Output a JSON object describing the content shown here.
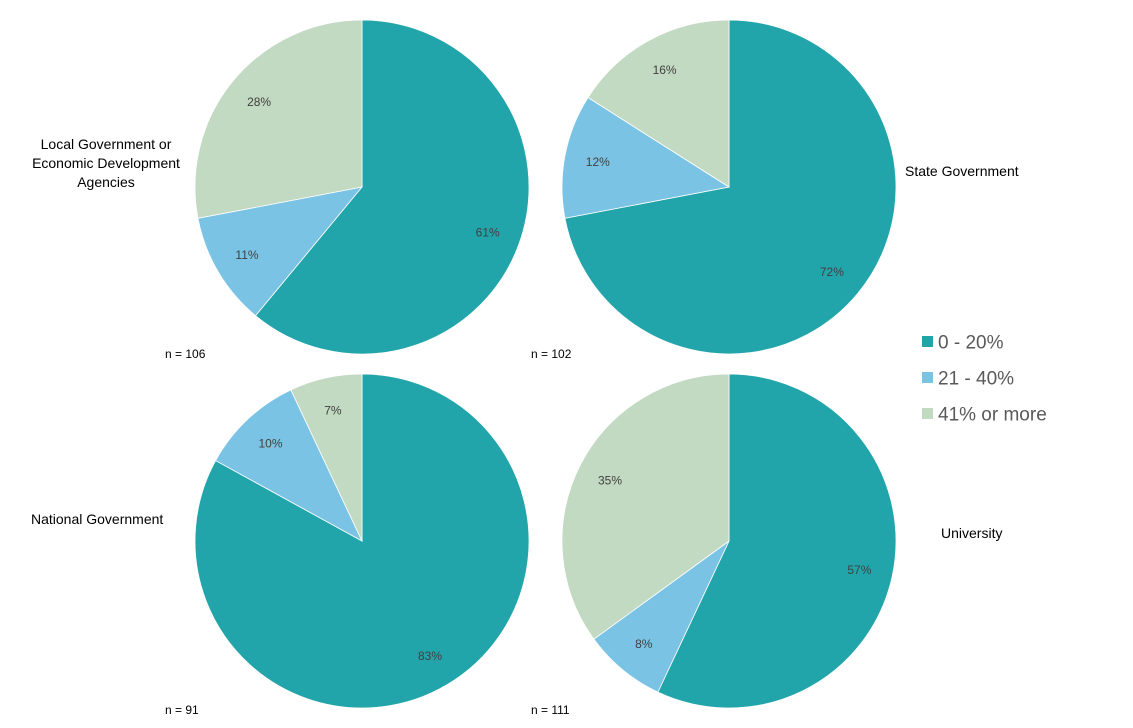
{
  "chart_data": {
    "type": "pie",
    "legend": {
      "position": "right",
      "entries": [
        {
          "label": "0 - 20%",
          "color": "#22a5aa"
        },
        {
          "label": "21 - 40%",
          "color": "#7bc3e4"
        },
        {
          "label": "41% or more",
          "color": "#c2d9c2"
        }
      ]
    },
    "pies": [
      {
        "title": "Local Government or Economic Development Agencies",
        "title_lines": [
          "Local Government or",
          "Economic Development",
          "Agencies"
        ],
        "n_label": "n = 106",
        "slices": [
          {
            "category": "0 - 20%",
            "value": 61,
            "label": "61%"
          },
          {
            "category": "21 - 40%",
            "value": 11,
            "label": "11%"
          },
          {
            "category": "41% or more",
            "value": 28,
            "label": "28%"
          }
        ]
      },
      {
        "title": "State Government",
        "title_lines": [
          "State Government"
        ],
        "n_label": "n = 102",
        "slices": [
          {
            "category": "0 - 20%",
            "value": 72,
            "label": "72%"
          },
          {
            "category": "21 - 40%",
            "value": 12,
            "label": "12%"
          },
          {
            "category": "41% or more",
            "value": 16,
            "label": "16%"
          }
        ]
      },
      {
        "title": "National Government",
        "title_lines": [
          "National Government"
        ],
        "n_label": "n = 91",
        "slices": [
          {
            "category": "0 - 20%",
            "value": 83,
            "label": "83%"
          },
          {
            "category": "21 - 40%",
            "value": 10,
            "label": "10%"
          },
          {
            "category": "41% or more",
            "value": 7,
            "label": "7%"
          }
        ]
      },
      {
        "title": "University",
        "title_lines": [
          "University"
        ],
        "n_label": "n = 111",
        "slices": [
          {
            "category": "0 - 20%",
            "value": 57,
            "label": "57%"
          },
          {
            "category": "21 - 40%",
            "value": 8,
            "label": "8%"
          },
          {
            "category": "41% or more",
            "value": 35,
            "label": "35%"
          }
        ]
      }
    ]
  }
}
